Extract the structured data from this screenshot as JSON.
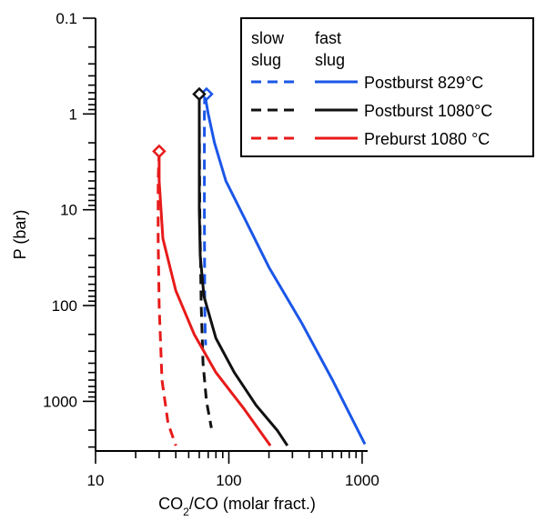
{
  "chart_data": {
    "type": "line",
    "title": "",
    "xlabel": {
      "main": "CO",
      "sub": "2",
      "rest": "/CO (molar fract.)"
    },
    "ylabel": "P (bar)",
    "x_scale": "log",
    "y_scale": "log",
    "y_inverted": true,
    "xlim": [
      10,
      1100
    ],
    "ylim": [
      0.1,
      3300
    ],
    "x_ticks": [
      {
        "value": 10,
        "label": "10"
      },
      {
        "value": 100,
        "label": "100"
      },
      {
        "value": 1000,
        "label": "1000"
      }
    ],
    "y_ticks": [
      {
        "value": 0.1,
        "label": "0.1"
      },
      {
        "value": 1,
        "label": "1"
      },
      {
        "value": 10,
        "label": "10"
      },
      {
        "value": 100,
        "label": "100"
      },
      {
        "value": 1000,
        "label": "1000"
      }
    ],
    "grid": false,
    "legend": {
      "placement": "top-right",
      "headers": [
        {
          "line1": "slow",
          "line2": "slug"
        },
        {
          "line1": "fast",
          "line2": "slug"
        }
      ],
      "entries": [
        {
          "label": "Postburst 829°C",
          "color": "#1a56e8"
        },
        {
          "label": "Postburst 1080°C",
          "color": "#111111"
        },
        {
          "label": "Preburst 1080 °C",
          "color": "#e81a1a"
        }
      ]
    },
    "series": [
      {
        "group": "Postburst 829°C",
        "slug": "slow",
        "style": "dashed",
        "color": "#1a56e8",
        "x": [
          66,
          65.5,
          65.5,
          66,
          66.5,
          67
        ],
        "y": [
          0.62,
          1,
          10,
          100,
          200,
          260
        ]
      },
      {
        "group": "Postburst 829°C",
        "slug": "fast",
        "style": "solid",
        "color": "#1a56e8",
        "x": [
          66,
          70,
          78,
          95,
          130,
          200,
          350,
          600,
          1050
        ],
        "y": [
          0.62,
          1,
          2,
          5,
          12,
          40,
          150,
          600,
          2800
        ]
      },
      {
        "group": "Postburst 1080°C",
        "slug": "slow",
        "style": "dashed",
        "color": "#111111",
        "x": [
          60,
          60,
          60.5,
          62,
          64,
          68,
          74
        ],
        "y": [
          0.62,
          1,
          10,
          100,
          400,
          1000,
          1900
        ]
      },
      {
        "group": "Postburst 1080°C",
        "slug": "fast",
        "style": "solid",
        "color": "#111111",
        "x": [
          60,
          60,
          60,
          61,
          65,
          80,
          110,
          160,
          230,
          275
        ],
        "y": [
          0.62,
          1,
          10,
          30,
          80,
          220,
          500,
          1100,
          2000,
          2900
        ]
      },
      {
        "group": "Preburst 1080 °C",
        "slug": "slow",
        "style": "dashed",
        "color": "#e81a1a",
        "x": [
          30,
          29.5,
          29.5,
          30,
          31.5,
          35,
          40
        ],
        "y": [
          2.45,
          5,
          20,
          100,
          600,
          1700,
          2900
        ]
      },
      {
        "group": "Preburst 1080 °C",
        "slug": "fast",
        "style": "solid",
        "color": "#e81a1a",
        "x": [
          30,
          30,
          32,
          40,
          55,
          80,
          130,
          205
        ],
        "y": [
          2.45,
          5,
          20,
          70,
          200,
          500,
          1200,
          2900
        ]
      }
    ],
    "markers": [
      {
        "group": "Postburst 829°C",
        "color": "#1a56e8",
        "x": 68,
        "y": 0.62
      },
      {
        "group": "Postburst 1080°C",
        "color": "#111111",
        "x": 60,
        "y": 0.62
      },
      {
        "group": "Preburst 1080 °C",
        "color": "#e81a1a",
        "x": 30,
        "y": 2.45
      }
    ]
  }
}
